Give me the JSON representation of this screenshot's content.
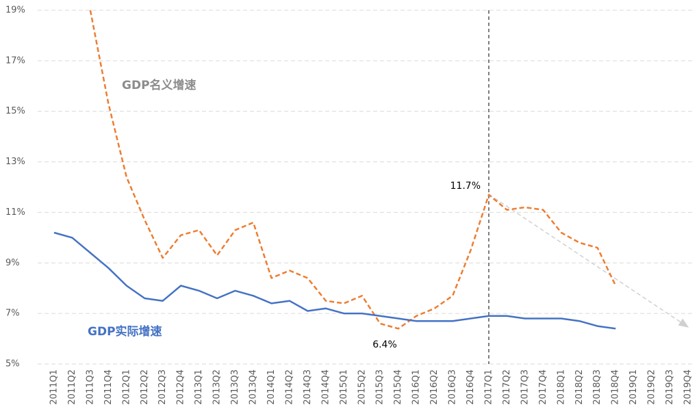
{
  "chart_data": {
    "type": "line",
    "categories": [
      "2011Q1",
      "2011Q2",
      "2011Q3",
      "2011Q4",
      "2012Q1",
      "2012Q2",
      "2012Q3",
      "2012Q4",
      "2013Q1",
      "2013Q2",
      "2013Q3",
      "2013Q4",
      "2014Q1",
      "2014Q2",
      "2014Q3",
      "2014Q4",
      "2015Q1",
      "2015Q2",
      "2015Q3",
      "2015Q4",
      "2016Q1",
      "2016Q2",
      "2016Q3",
      "2016Q4",
      "2017Q1",
      "2017Q2",
      "2017Q3",
      "2017Q4",
      "2018Q1",
      "2018Q2",
      "2018Q3",
      "2018Q4",
      "2019Q1",
      "2019Q2",
      "2019Q3",
      "2019Q4"
    ],
    "series": [
      {
        "name": "GDP名义增速",
        "color": "#ed7d31",
        "dashed": true,
        "values": [
          null,
          null,
          19.0,
          15.3,
          12.4,
          10.7,
          9.2,
          10.1,
          10.3,
          9.3,
          10.3,
          10.6,
          8.4,
          8.7,
          8.4,
          7.5,
          7.4,
          7.7,
          6.6,
          6.4,
          6.9,
          7.2,
          7.7,
          9.5,
          11.7,
          11.1,
          11.2,
          11.1,
          10.2,
          9.8,
          9.6,
          8.1,
          null,
          null,
          null,
          null
        ],
        "value_labels": [
          null,
          null,
          null,
          null,
          null,
          null,
          null,
          null,
          null,
          null,
          null,
          null,
          null,
          null,
          null,
          null,
          null,
          null,
          null,
          "6.4%",
          null,
          null,
          null,
          null,
          "11.7%",
          null,
          null,
          null,
          null,
          null,
          null,
          null,
          null,
          null,
          null,
          null
        ]
      },
      {
        "name": "GDP实际增速",
        "color": "#4472c4",
        "dashed": false,
        "values": [
          10.2,
          10.0,
          9.4,
          8.8,
          8.1,
          7.6,
          7.5,
          8.1,
          7.9,
          7.6,
          7.9,
          7.7,
          7.4,
          7.5,
          7.1,
          7.2,
          7.0,
          7.0,
          6.9,
          6.8,
          6.7,
          6.7,
          6.7,
          6.8,
          6.9,
          6.9,
          6.8,
          6.8,
          6.8,
          6.7,
          6.5,
          6.4,
          null,
          null,
          null,
          null
        ]
      }
    ],
    "ylim": [
      5,
      19
    ],
    "yticks": [
      {
        "value": 5,
        "label": "5%"
      },
      {
        "value": 7,
        "label": "7%"
      },
      {
        "value": 9,
        "label": "9%"
      },
      {
        "value": 11,
        "label": "11%"
      },
      {
        "value": 13,
        "label": "13%"
      },
      {
        "value": 15,
        "label": "15%"
      },
      {
        "value": 17,
        "label": "17%"
      },
      {
        "value": 19,
        "label": "19%"
      }
    ],
    "grid": true,
    "vline_at": "2017Q1"
  }
}
